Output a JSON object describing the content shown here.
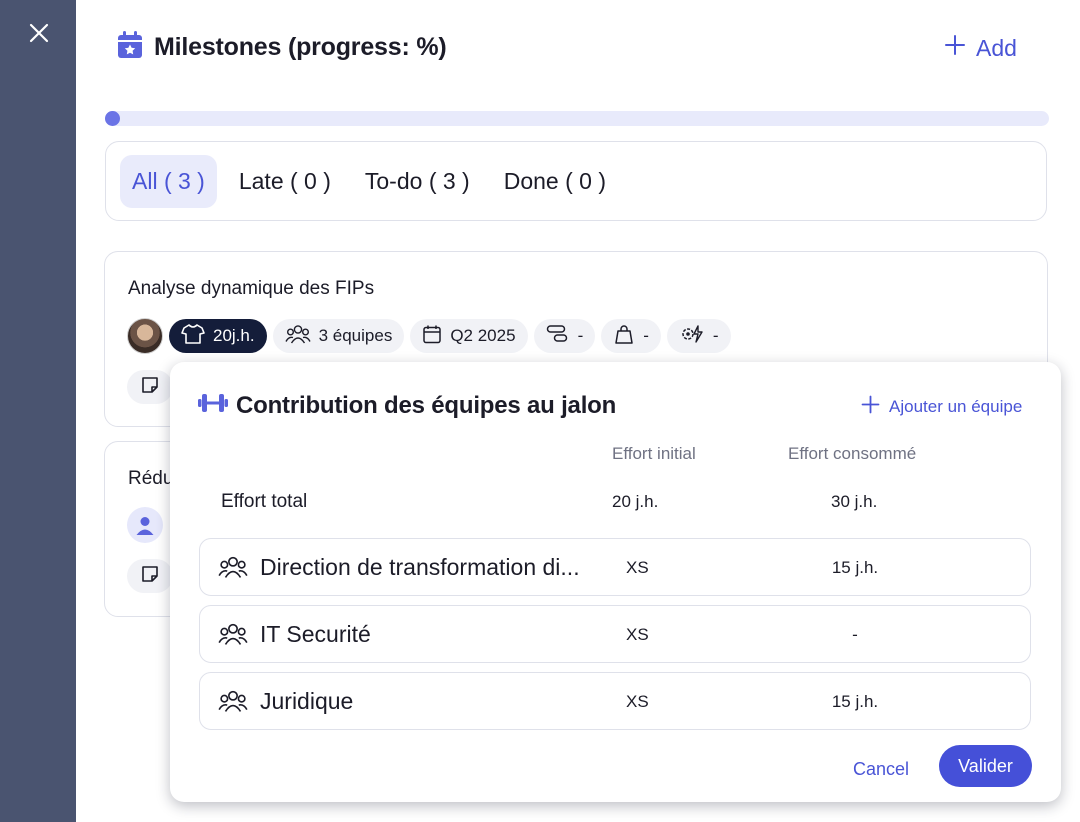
{
  "header": {
    "title": "Milestones (progress: %)",
    "add_label": "Add",
    "progress_fraction": 0.0
  },
  "filters": [
    {
      "label": "All ( 3 )",
      "active": true
    },
    {
      "label": "Late ( 0 )",
      "active": false
    },
    {
      "label": "To-do ( 3 )",
      "active": false
    },
    {
      "label": "Done ( 0 )",
      "active": false
    }
  ],
  "milestones": [
    {
      "title": "Analyse dynamique des FIPs",
      "chips": {
        "effort": "20j.h.",
        "teams": "3 équipes",
        "quarter": "Q2 2025",
        "chip4": "-",
        "chip5": "-",
        "chip6": "-"
      }
    },
    {
      "title": "Rédu"
    }
  ],
  "popover": {
    "title": "Contribution des équipes au jalon",
    "add_team_label": "Ajouter un équipe",
    "col_initial": "Effort initial",
    "col_consumed": "Effort consommé",
    "total_label": "Effort total",
    "total_initial": "20 j.h.",
    "total_consumed": "30 j.h.",
    "teams": [
      {
        "name": "Direction de transformation di...",
        "initial": "XS",
        "consumed": "15 j.h."
      },
      {
        "name": "IT Securité",
        "initial": "XS",
        "consumed": "-"
      },
      {
        "name": "Juridique",
        "initial": "XS",
        "consumed": "15 j.h."
      }
    ],
    "cancel_label": "Cancel",
    "submit_label": "Valider"
  },
  "colors": {
    "accent": "#4954d6",
    "sidebar": "#4a5470",
    "progress_track": "#e8eafb",
    "progress_fill": "#6b74e6",
    "dark_chip": "#141d3a"
  }
}
